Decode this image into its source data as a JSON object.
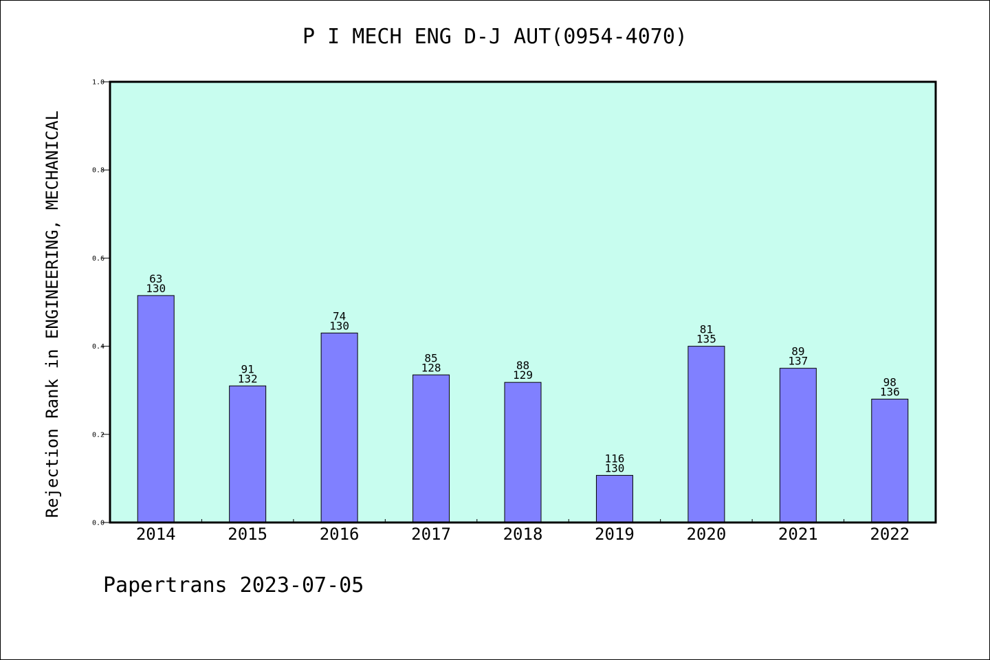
{
  "colors": {
    "plot_background": "#c8fdef",
    "bar_fill": "#8080ff",
    "bar_stroke": "#000000",
    "frame": "#000000"
  },
  "footer": "Papertrans 2023-07-05",
  "chart_data": {
    "type": "bar",
    "title": "P I MECH ENG D-J AUT(0954-4070)",
    "xlabel": "",
    "ylabel": "Rejection Rank in ENGINEERING, MECHANICAL",
    "ylim": [
      0,
      1.0
    ],
    "yticks": [
      0.0,
      0.2,
      0.4,
      0.6,
      0.8,
      1.0
    ],
    "ytick_labels": [
      "0.0",
      "0.2",
      "0.4",
      "0.6",
      "0.8",
      "1.0"
    ],
    "grid": false,
    "legend": "none",
    "categories": [
      "2014",
      "2015",
      "2016",
      "2017",
      "2018",
      "2019",
      "2020",
      "2021",
      "2022"
    ],
    "values": [
      0.515,
      0.31,
      0.43,
      0.335,
      0.318,
      0.107,
      0.4,
      0.35,
      0.28
    ],
    "rank": [
      "63",
      "91",
      "74",
      "85",
      "88",
      "116",
      "81",
      "89",
      "98"
    ],
    "total": [
      "130",
      "132",
      "130",
      "128",
      "129",
      "130",
      "135",
      "137",
      "136"
    ]
  }
}
